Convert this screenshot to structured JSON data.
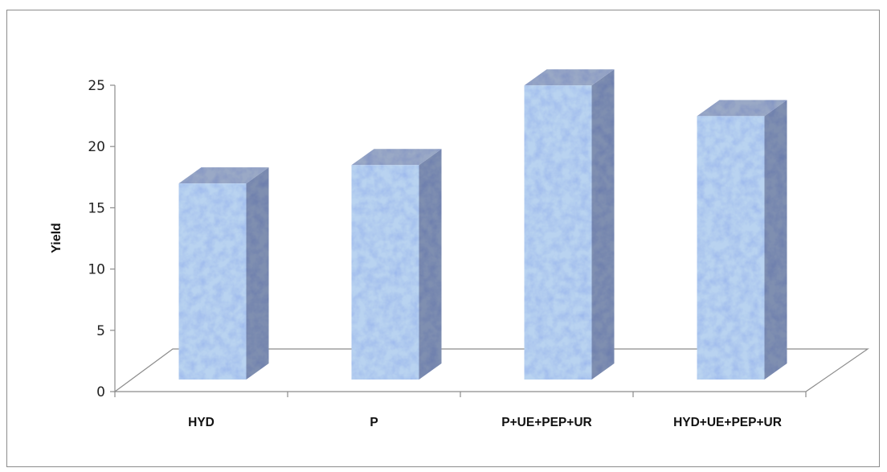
{
  "chart_data": {
    "type": "bar",
    "categories": [
      "HYD",
      "P",
      "P+UE+PEP+UR",
      "HYD+UE+PEP+UR"
    ],
    "values": [
      16,
      17.5,
      24,
      21.5
    ],
    "title": "",
    "xlabel": "",
    "ylabel": "Yield",
    "ylim": [
      0,
      25
    ],
    "yticks": [
      0,
      5,
      10,
      15,
      20,
      25
    ],
    "grid": false,
    "legend": "none",
    "colors": {
      "bar_front": "#b9d3f0",
      "bar_side": "#7f8fb0",
      "bar_top": "#9aa9c6",
      "axis": "#8c8c8c"
    }
  }
}
